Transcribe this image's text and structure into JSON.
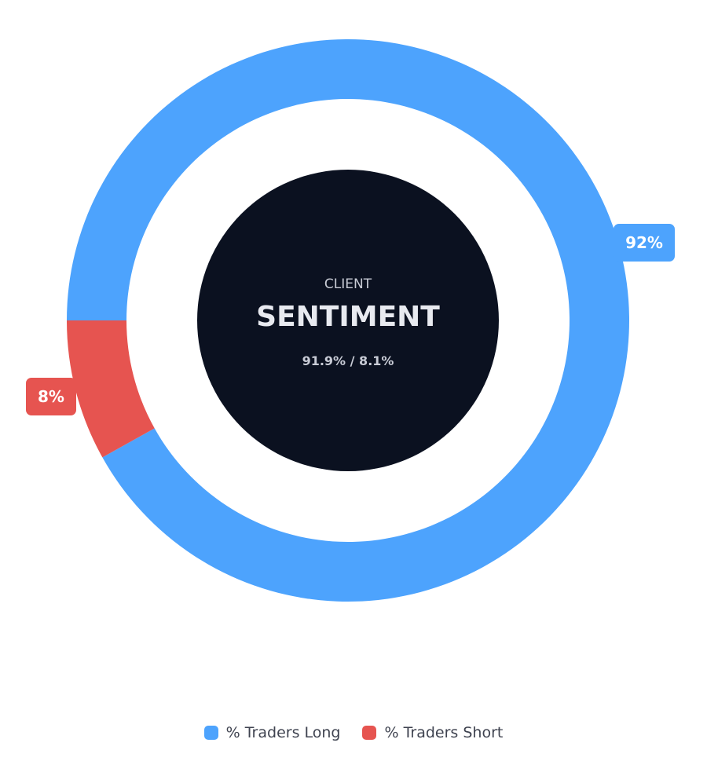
{
  "chart_data": {
    "type": "pie",
    "variant": "donut",
    "center": {
      "line1": "CLIENT",
      "line2": "SENTIMENT",
      "line3": "91.9% / 8.1%"
    },
    "series": [
      {
        "name": "% Traders Long",
        "value": 91.9,
        "label": "92%",
        "color": "#4da3fd"
      },
      {
        "name": "% Traders Short",
        "value": 8.1,
        "label": "8%",
        "color": "#e65450"
      }
    ],
    "legend_position": "bottom"
  },
  "colors": {
    "center_fill": "#0b1120",
    "center_text": "#e8eaf0",
    "label_text": "#ffffff"
  }
}
